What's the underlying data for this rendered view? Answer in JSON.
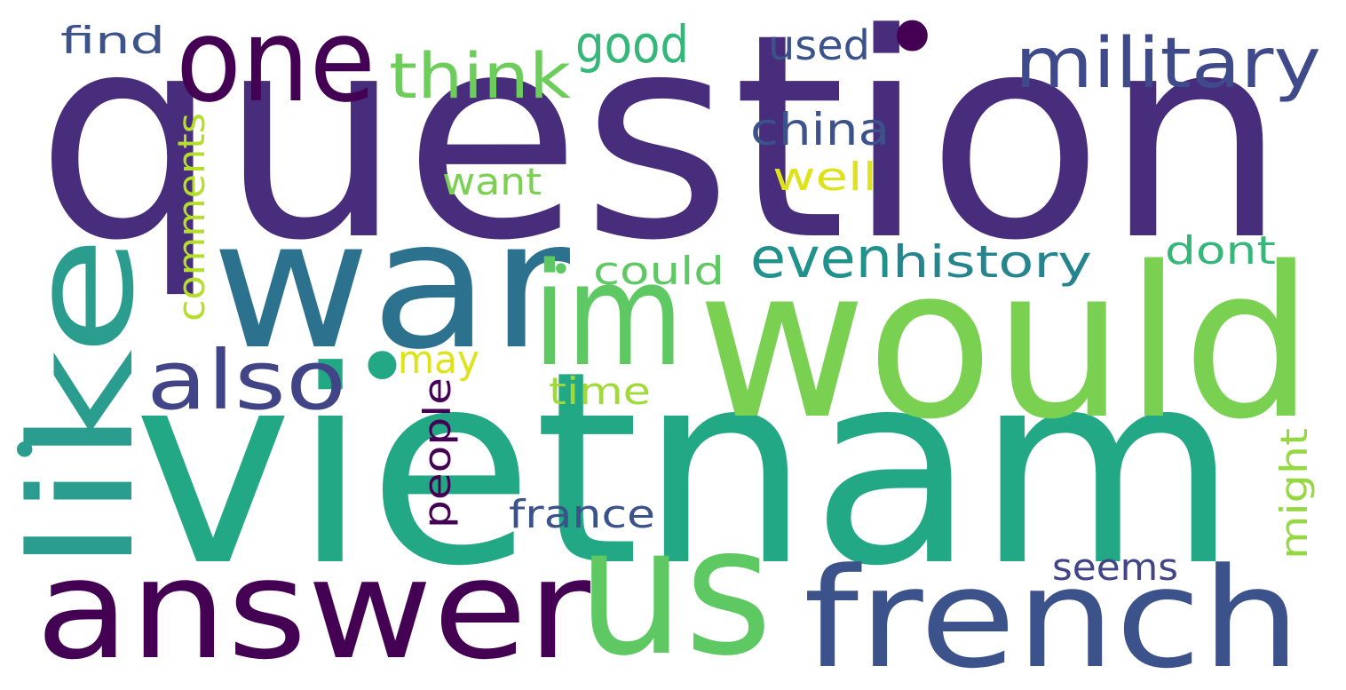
{
  "words": [
    {
      "text": "question",
      "color": "#472d7b"
    },
    {
      "text": "vietnam",
      "color": "#22a884"
    },
    {
      "text": "war",
      "color": "#2c728e"
    },
    {
      "text": "would",
      "color": "#7ad151"
    },
    {
      "text": "answer",
      "color": "#440154"
    },
    {
      "text": "us",
      "color": "#5ec962"
    },
    {
      "text": "french",
      "color": "#3b528b"
    },
    {
      "text": "like",
      "color": "#2a9d8f"
    },
    {
      "text": "one",
      "color": "#440154"
    },
    {
      "text": "im",
      "color": "#5ec962"
    },
    {
      "text": "military",
      "color": "#3e4a89"
    },
    {
      "text": "also",
      "color": "#414487"
    },
    {
      "text": "think",
      "color": "#6ccd5a"
    },
    {
      "text": "good",
      "color": "#35b779"
    },
    {
      "text": "even",
      "color": "#21918c"
    },
    {
      "text": "history",
      "color": "#25858e"
    },
    {
      "text": "china",
      "color": "#3b528b"
    },
    {
      "text": "used",
      "color": "#3b528b"
    },
    {
      "text": "find",
      "color": "#3b528b"
    },
    {
      "text": "could",
      "color": "#5ec962"
    },
    {
      "text": "dont",
      "color": "#35b779"
    },
    {
      "text": "comments",
      "color": "#b5de2b"
    },
    {
      "text": "want",
      "color": "#7ad151"
    },
    {
      "text": "well",
      "color": "#dde318"
    },
    {
      "text": "may",
      "color": "#dde318"
    },
    {
      "text": "time",
      "color": "#a0da39"
    },
    {
      "text": "people",
      "color": "#440154"
    },
    {
      "text": "france",
      "color": "#3b528b"
    },
    {
      "text": "seems",
      "color": "#414487"
    },
    {
      "text": "might",
      "color": "#95d840"
    },
    {
      "text": "•",
      "color": "#440154"
    },
    {
      "text": "•",
      "color": "#22a884"
    },
    {
      "text": "•",
      "color": "#5ec962"
    },
    {
      "text": "•",
      "color": "#2a9d8f"
    }
  ]
}
